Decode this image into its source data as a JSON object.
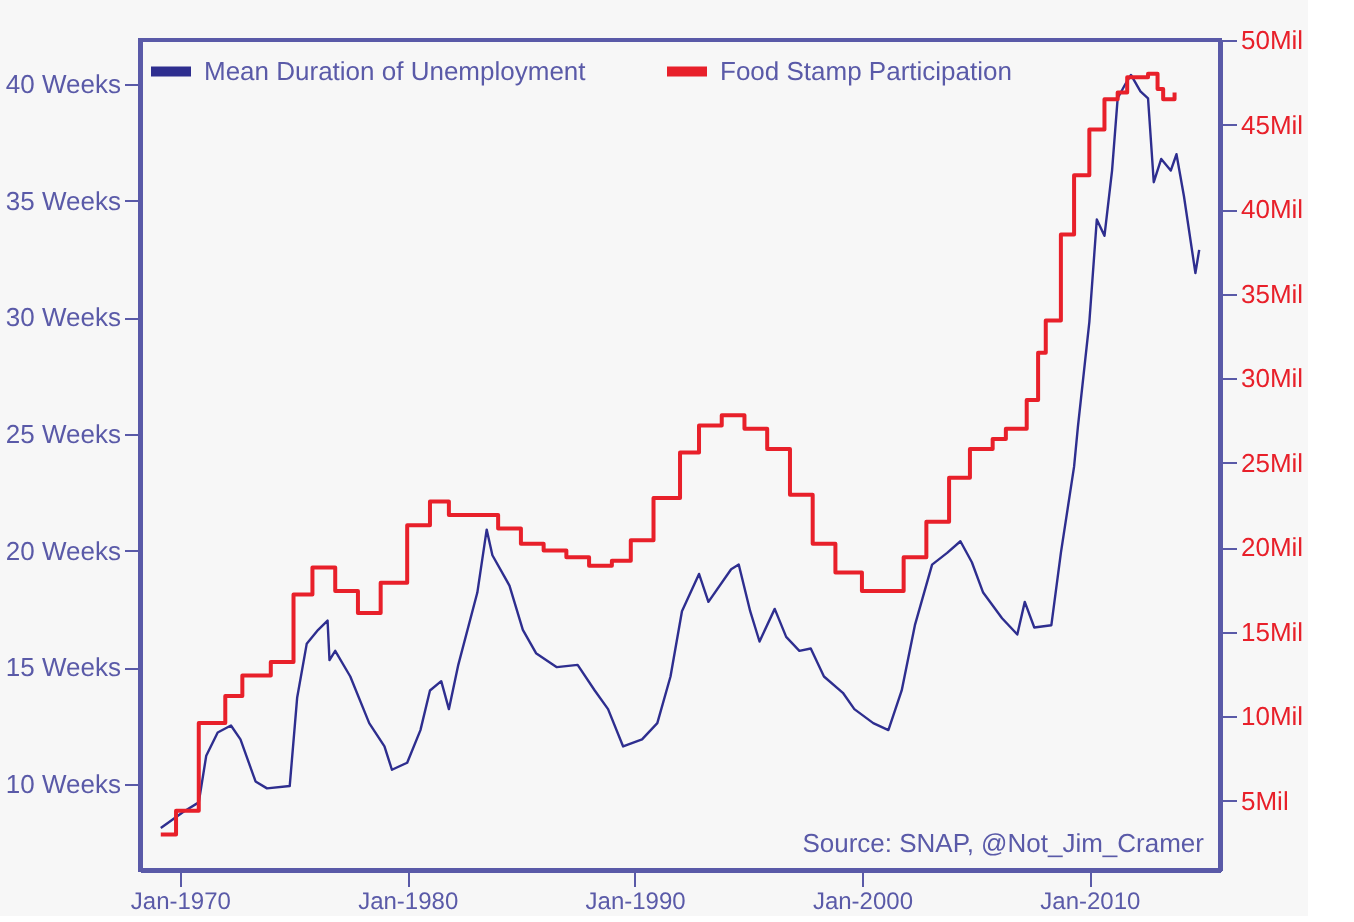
{
  "chart_data": {
    "type": "line",
    "xlim": [
      "1968-04",
      "2015-10"
    ],
    "xticks": [
      {
        "value": "1970-01",
        "label": "Jan-1970"
      },
      {
        "value": "1980-01",
        "label": "Jan-1980"
      },
      {
        "value": "1990-01",
        "label": "Jan-1990"
      },
      {
        "value": "2000-01",
        "label": "Jan-2000"
      },
      {
        "value": "2010-01",
        "label": "Jan-2010"
      }
    ],
    "ylim": [
      6.3,
      41.9
    ],
    "yticks": [
      {
        "value": 10,
        "label": "10 Weeks"
      },
      {
        "value": 15,
        "label": "15 Weeks"
      },
      {
        "value": 20,
        "label": "20 Weeks"
      },
      {
        "value": 25,
        "label": "25 Weeks"
      },
      {
        "value": 30,
        "label": "30 Weeks"
      },
      {
        "value": 35,
        "label": "35 Weeks"
      },
      {
        "value": 40,
        "label": "40 Weeks"
      }
    ],
    "y2lim": [
      0.9,
      50
    ],
    "y2ticks": [
      {
        "value": 5,
        "label": "5Mil"
      },
      {
        "value": 10,
        "label": "10Mil"
      },
      {
        "value": 15,
        "label": "15Mil"
      },
      {
        "value": 20,
        "label": "20Mil"
      },
      {
        "value": 25,
        "label": "25Mil"
      },
      {
        "value": 30,
        "label": "30Mil"
      },
      {
        "value": 35,
        "label": "35Mil"
      },
      {
        "value": 40,
        "label": "40Mil"
      },
      {
        "value": 45,
        "label": "45Mil"
      },
      {
        "value": 50,
        "label": "50Mil"
      }
    ],
    "legend": "top",
    "grid": false,
    "line_style": "solid",
    "marker": "none",
    "annotations": [
      "Source: SNAP, @Not_Jim_Cramer"
    ],
    "series": [
      {
        "name": "Mean Duration of Unemployment",
        "color": "#2e2e8f",
        "type": "line",
        "x": [
          "1969-03",
          "1970-03",
          "1970-11",
          "1971-03",
          "1971-09",
          "1972-04",
          "1972-09",
          "1973-05",
          "1973-11",
          "1974-11",
          "1975-03",
          "1975-08",
          "1976-02",
          "1976-07",
          "1976-08",
          "1976-11",
          "1977-07",
          "1978-05",
          "1979-01",
          "1979-05",
          "1980-01",
          "1980-08",
          "1981-01",
          "1981-07",
          "1981-11",
          "1982-04",
          "1983-02",
          "1983-07",
          "1983-10",
          "1984-07",
          "1985-02",
          "1985-09",
          "1986-08",
          "1987-07",
          "1988-04",
          "1988-11",
          "1989-07",
          "1990-05",
          "1991-01",
          "1991-08",
          "1992-02",
          "1992-11",
          "1993-04",
          "1994-04",
          "1994-08",
          "1995-02",
          "1995-07",
          "1996-03",
          "1996-09",
          "1997-04",
          "1997-10",
          "1998-05",
          "1999-03",
          "1999-09",
          "2000-07",
          "2001-03",
          "2001-10",
          "2002-05",
          "2003-02",
          "2003-10",
          "2004-05",
          "2004-11",
          "2005-05",
          "2006-03",
          "2006-11",
          "2007-03",
          "2007-08",
          "2008-05",
          "2008-10",
          "2009-05",
          "2009-07",
          "2010-01",
          "2010-05",
          "2010-09",
          "2011-01",
          "2011-04",
          "2011-08",
          "2011-11",
          "2012-04",
          "2012-08",
          "2012-11",
          "2013-03",
          "2013-08",
          "2013-11",
          "2014-03",
          "2014-09",
          "2014-11"
        ],
        "values": [
          8.1,
          8.8,
          9.2,
          11.2,
          12.2,
          12.5,
          11.9,
          10.1,
          9.8,
          9.9,
          13.7,
          16.0,
          16.6,
          17.0,
          15.3,
          15.7,
          14.6,
          12.6,
          11.6,
          10.6,
          10.9,
          12.3,
          14.0,
          14.4,
          13.2,
          15.1,
          18.2,
          20.9,
          19.8,
          18.5,
          16.6,
          15.6,
          15.0,
          15.1,
          14.0,
          13.2,
          11.6,
          11.9,
          12.6,
          14.6,
          17.4,
          19.0,
          17.8,
          19.2,
          19.4,
          17.4,
          16.1,
          17.5,
          16.3,
          15.7,
          15.8,
          14.6,
          13.9,
          13.2,
          12.6,
          12.3,
          14.0,
          16.8,
          19.4,
          19.9,
          20.4,
          19.5,
          18.2,
          17.1,
          16.4,
          17.8,
          16.7,
          16.8,
          19.9,
          23.6,
          25.3,
          29.8,
          34.2,
          33.5,
          36.3,
          39.4,
          40.0,
          40.4,
          39.7,
          39.4,
          35.8,
          36.8,
          36.3,
          37.0,
          35.2,
          31.9,
          32.9
        ]
      },
      {
        "name": "Food Stamp Participation",
        "color": "#e8202a",
        "type": "step",
        "axis": "y2",
        "x": [
          "1969-03",
          "1969-11",
          "1970-11",
          "1972-01",
          "1972-10",
          "1974-01",
          "1975-01",
          "1975-11",
          "1976-11",
          "1977-11",
          "1978-11",
          "1980-01",
          "1981-01",
          "1981-11",
          "1984-01",
          "1985-01",
          "1986-01",
          "1987-01",
          "1988-01",
          "1989-01",
          "1989-11",
          "1990-11",
          "1992-01",
          "1992-11",
          "1993-11",
          "1994-11",
          "1995-11",
          "1996-11",
          "1997-11",
          "1998-11",
          "2000-01",
          "2001-11",
          "2002-11",
          "2003-11",
          "2004-10",
          "2005-10",
          "2006-05",
          "2007-04",
          "2007-10",
          "2008-02",
          "2008-10",
          "2009-05",
          "2010-01",
          "2010-09",
          "2011-04",
          "2011-09",
          "2012-08",
          "2013-01",
          "2013-04",
          "2013-10"
        ],
        "values": [
          3.0,
          4.4,
          9.6,
          11.2,
          12.4,
          13.2,
          17.2,
          18.8,
          17.4,
          16.1,
          17.9,
          21.3,
          22.7,
          21.9,
          21.1,
          20.2,
          19.8,
          19.4,
          18.9,
          19.2,
          20.4,
          22.9,
          25.6,
          27.2,
          27.8,
          27.0,
          25.8,
          23.1,
          20.2,
          18.5,
          17.4,
          19.4,
          21.5,
          24.1,
          25.8,
          26.4,
          27.0,
          28.7,
          31.5,
          33.4,
          38.5,
          42.0,
          44.7,
          46.5,
          46.9,
          47.8,
          48.0,
          47.1,
          46.5,
          46.9
        ]
      }
    ]
  }
}
